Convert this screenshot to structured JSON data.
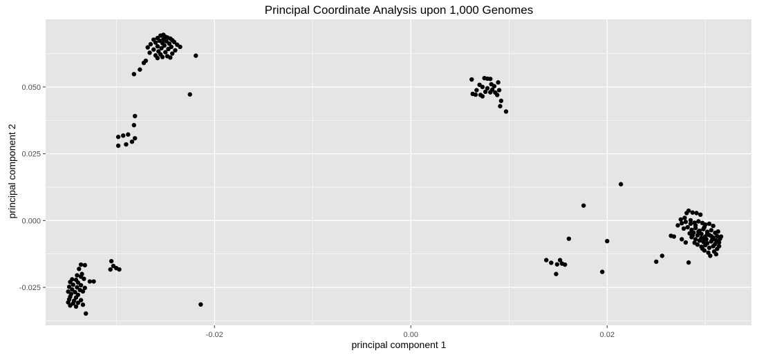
{
  "chart_data": {
    "type": "scatter",
    "title": "Principal Coordinate Analysis upon 1,000 Genomes",
    "xlabel": "principal component 1",
    "ylabel": "principal component 2",
    "xlim": [
      -0.0372,
      0.0347
    ],
    "ylim": [
      -0.0392,
      0.0753
    ],
    "x_ticks": [
      -0.02,
      0.0,
      0.02
    ],
    "x_tick_labels": [
      "-0.02",
      "0.00",
      "0.02"
    ],
    "y_ticks": [
      -0.025,
      0.0,
      0.025,
      0.05
    ],
    "y_tick_labels": [
      "-0.025",
      "0.000",
      "0.025",
      "0.050"
    ],
    "grid": true,
    "legend": "none",
    "colors": {
      "panel": "#e5e5e5",
      "grid": "#ffffff",
      "point": "#000000",
      "tick": "#4d4d4d"
    },
    "points": [
      [
        -0.0252,
        0.0695
      ],
      [
        -0.0255,
        0.0692
      ],
      [
        -0.025,
        0.0688
      ],
      [
        -0.0248,
        0.0685
      ],
      [
        -0.0258,
        0.0683
      ],
      [
        -0.0245,
        0.0681
      ],
      [
        -0.0252,
        0.0679
      ],
      [
        -0.0262,
        0.0677
      ],
      [
        -0.0243,
        0.0675
      ],
      [
        -0.0256,
        0.0673
      ],
      [
        -0.0249,
        0.0671
      ],
      [
        -0.0241,
        0.0668
      ],
      [
        -0.026,
        0.0666
      ],
      [
        -0.0253,
        0.0664
      ],
      [
        -0.0246,
        0.0662
      ],
      [
        -0.0265,
        0.066
      ],
      [
        -0.0238,
        0.0658
      ],
      [
        -0.0251,
        0.0655
      ],
      [
        -0.0258,
        0.0652
      ],
      [
        -0.0244,
        0.065
      ],
      [
        -0.0268,
        0.0648
      ],
      [
        -0.0235,
        0.065
      ],
      [
        -0.0254,
        0.0645
      ],
      [
        -0.0247,
        0.0642
      ],
      [
        -0.0262,
        0.064
      ],
      [
        -0.024,
        0.0637
      ],
      [
        -0.0257,
        0.0633
      ],
      [
        -0.025,
        0.063
      ],
      [
        -0.0266,
        0.0628
      ],
      [
        -0.0243,
        0.0625
      ],
      [
        -0.0255,
        0.0622
      ],
      [
        -0.026,
        0.0618
      ],
      [
        -0.0248,
        0.0615
      ],
      [
        -0.0253,
        0.0612
      ],
      [
        -0.0258,
        0.0608
      ],
      [
        -0.0245,
        0.061
      ],
      [
        -0.027,
        0.0598
      ],
      [
        -0.0272,
        0.059
      ],
      [
        -0.0276,
        0.0565
      ],
      [
        -0.0282,
        0.0548
      ],
      [
        -0.0219,
        0.0617
      ],
      [
        -0.0225,
        0.0472
      ],
      [
        -0.0281,
        0.0391
      ],
      [
        -0.0282,
        0.0357
      ],
      [
        -0.0293,
        0.0318
      ],
      [
        -0.0288,
        0.0322
      ],
      [
        -0.0298,
        0.0313
      ],
      [
        -0.0281,
        0.0308
      ],
      [
        -0.0284,
        0.0295
      ],
      [
        -0.029,
        0.0285
      ],
      [
        -0.0298,
        0.028
      ],
      [
        -0.0336,
        -0.0165
      ],
      [
        -0.0332,
        -0.0167
      ],
      [
        -0.0338,
        -0.0181
      ],
      [
        -0.0335,
        -0.02
      ],
      [
        -0.034,
        -0.0205
      ],
      [
        -0.0336,
        -0.021
      ],
      [
        -0.0345,
        -0.022
      ],
      [
        -0.0341,
        -0.0222
      ],
      [
        -0.0333,
        -0.0218
      ],
      [
        -0.0347,
        -0.023
      ],
      [
        -0.0339,
        -0.0232
      ],
      [
        -0.0327,
        -0.0228
      ],
      [
        -0.0344,
        -0.024
      ],
      [
        -0.0336,
        -0.0242
      ],
      [
        -0.0348,
        -0.0248
      ],
      [
        -0.034,
        -0.025
      ],
      [
        -0.0332,
        -0.0252
      ],
      [
        -0.0345,
        -0.0258
      ],
      [
        -0.0337,
        -0.026
      ],
      [
        -0.0349,
        -0.0266
      ],
      [
        -0.0342,
        -0.0268
      ],
      [
        -0.0334,
        -0.0265
      ],
      [
        -0.0346,
        -0.0275
      ],
      [
        -0.0339,
        -0.0278
      ],
      [
        -0.0347,
        -0.0285
      ],
      [
        -0.0341,
        -0.0288
      ],
      [
        -0.0348,
        -0.0295
      ],
      [
        -0.0343,
        -0.03
      ],
      [
        -0.0336,
        -0.0298
      ],
      [
        -0.0349,
        -0.0306
      ],
      [
        -0.0344,
        -0.031
      ],
      [
        -0.0339,
        -0.0308
      ],
      [
        -0.0347,
        -0.0318
      ],
      [
        -0.0341,
        -0.0322
      ],
      [
        -0.0334,
        -0.0315
      ],
      [
        -0.0331,
        -0.0348
      ],
      [
        -0.0323,
        -0.0228
      ],
      [
        -0.0305,
        -0.0152
      ],
      [
        -0.0303,
        -0.017
      ],
      [
        -0.03,
        -0.0178
      ],
      [
        -0.0306,
        -0.0183
      ],
      [
        -0.0297,
        -0.0183
      ],
      [
        -0.0214,
        -0.0314
      ],
      [
        0.0062,
        0.0528
      ],
      [
        0.0075,
        0.0533
      ],
      [
        0.0078,
        0.0531
      ],
      [
        0.0081,
        0.053
      ],
      [
        0.0089,
        0.0517
      ],
      [
        0.007,
        0.0508
      ],
      [
        0.0082,
        0.051
      ],
      [
        0.0085,
        0.0503
      ],
      [
        0.0073,
        0.05
      ],
      [
        0.0078,
        0.0495
      ],
      [
        0.0083,
        0.049
      ],
      [
        0.0067,
        0.0488
      ],
      [
        0.009,
        0.0488
      ],
      [
        0.0076,
        0.0482
      ],
      [
        0.0081,
        0.048
      ],
      [
        0.0086,
        0.0479
      ],
      [
        0.0063,
        0.0474
      ],
      [
        0.0066,
        0.0471
      ],
      [
        0.0071,
        0.047
      ],
      [
        0.0073,
        0.0465
      ],
      [
        0.0088,
        0.047
      ],
      [
        0.0092,
        0.0448
      ],
      [
        0.0091,
        0.0428
      ],
      [
        0.0097,
        0.0408
      ],
      [
        0.0214,
        0.0136
      ],
      [
        0.0176,
        0.0056
      ],
      [
        0.0161,
        -0.0068
      ],
      [
        0.02,
        -0.0077
      ],
      [
        0.0138,
        -0.0148
      ],
      [
        0.0143,
        -0.0158
      ],
      [
        0.0149,
        -0.0164
      ],
      [
        0.0152,
        -0.0148
      ],
      [
        0.0154,
        -0.0161
      ],
      [
        0.0157,
        -0.0165
      ],
      [
        0.0148,
        -0.02
      ],
      [
        0.0195,
        -0.0192
      ],
      [
        0.025,
        -0.0154
      ],
      [
        0.0256,
        -0.0132
      ],
      [
        0.0283,
        -0.0157
      ],
      [
        0.0265,
        -0.0057
      ],
      [
        0.0268,
        -0.006
      ],
      [
        0.0272,
        -0.0018
      ],
      [
        0.0276,
        -0.001
      ],
      [
        0.0279,
        0.001
      ],
      [
        0.0275,
        0.0004
      ],
      [
        0.0283,
        0.0037
      ],
      [
        0.0287,
        0.003
      ],
      [
        0.0291,
        0.0028
      ],
      [
        0.0295,
        0.0022
      ],
      [
        0.0281,
        0.0028
      ],
      [
        0.028,
        -0.0005
      ],
      [
        0.0285,
        0.0001
      ],
      [
        0.0289,
        -0.0008
      ],
      [
        0.0293,
        -0.0003
      ],
      [
        0.0297,
        -0.0009
      ],
      [
        0.03,
        -0.0015
      ],
      [
        0.0304,
        -0.0012
      ],
      [
        0.0308,
        -0.002
      ],
      [
        0.0278,
        -0.003
      ],
      [
        0.0282,
        -0.0025
      ],
      [
        0.0286,
        -0.0035
      ],
      [
        0.029,
        -0.0028
      ],
      [
        0.0294,
        -0.0038
      ],
      [
        0.0298,
        -0.0032
      ],
      [
        0.0302,
        -0.0042
      ],
      [
        0.0306,
        -0.0036
      ],
      [
        0.031,
        -0.0046
      ],
      [
        0.0313,
        -0.0041
      ],
      [
        0.0284,
        -0.0048
      ],
      [
        0.0288,
        -0.0045
      ],
      [
        0.0292,
        -0.0055
      ],
      [
        0.0296,
        -0.005
      ],
      [
        0.03,
        -0.006
      ],
      [
        0.0304,
        -0.0054
      ],
      [
        0.0308,
        -0.0064
      ],
      [
        0.0312,
        -0.0058
      ],
      [
        0.0315,
        -0.0068
      ],
      [
        0.0286,
        -0.0062
      ],
      [
        0.029,
        -0.007
      ],
      [
        0.0294,
        -0.0075
      ],
      [
        0.0298,
        -0.008
      ],
      [
        0.0302,
        -0.0085
      ],
      [
        0.0306,
        -0.0078
      ],
      [
        0.031,
        -0.0088
      ],
      [
        0.0314,
        -0.0082
      ],
      [
        0.0292,
        -0.009
      ],
      [
        0.0296,
        -0.0098
      ],
      [
        0.03,
        -0.0092
      ],
      [
        0.0304,
        -0.0102
      ],
      [
        0.0308,
        -0.0096
      ],
      [
        0.0312,
        -0.0106
      ],
      [
        0.0299,
        -0.0112
      ],
      [
        0.0303,
        -0.012
      ],
      [
        0.0309,
        -0.0116
      ],
      [
        0.0305,
        -0.0132
      ],
      [
        0.0311,
        -0.0126
      ],
      [
        0.029,
        -0.0018
      ],
      [
        0.0299,
        -0.0025
      ],
      [
        0.0296,
        -0.0065
      ],
      [
        0.0301,
        -0.007
      ],
      [
        0.0307,
        -0.0072
      ],
      [
        0.0289,
        -0.0083
      ],
      [
        0.028,
        -0.0082
      ],
      [
        0.0276,
        -0.007
      ],
      [
        0.0314,
        -0.0096
      ],
      [
        0.0316,
        -0.006
      ],
      [
        0.0297,
        -0.0105
      ],
      [
        0.0285,
        -0.0012
      ],
      [
        0.0293,
        -0.0042
      ],
      [
        0.0302,
        -0.005
      ],
      [
        0.0306,
        -0.0058
      ],
      [
        0.0298,
        -0.0066
      ],
      [
        0.0287,
        -0.0056
      ],
      [
        0.0311,
        -0.0074
      ]
    ]
  }
}
